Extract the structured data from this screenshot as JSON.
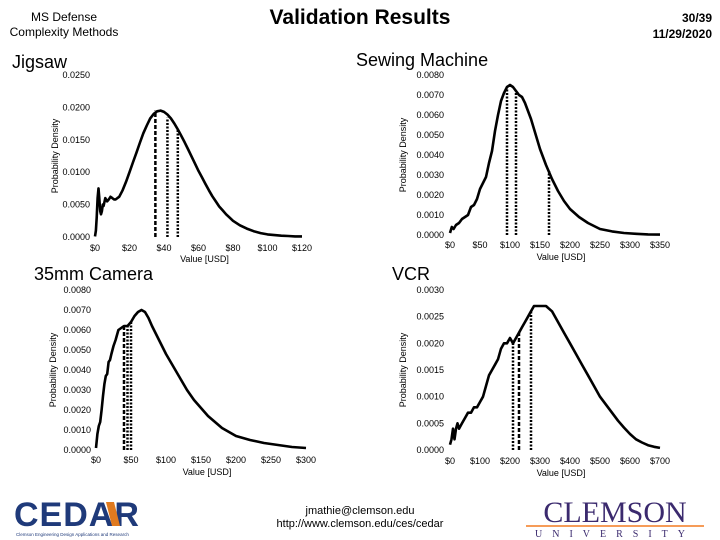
{
  "header": {
    "left_line1": "MS Defense",
    "left_line2": "Complexity Methods",
    "title": "Validation Results",
    "page": "30/39",
    "date": "11/29/2020"
  },
  "footer": {
    "email": "jmathie@clemson.edu",
    "url": "http://www.clemson.edu/ces/cedar",
    "cedar_logo_text": "CEDAR",
    "cedar_logo_subtext": "Clemson Engineering Design Applications and Research",
    "clemson_logo_text": "CLEMSON",
    "clemson_logo_subtext": "UNIVERSITY"
  },
  "chart_data": [
    {
      "type": "line",
      "title": "Jigsaw",
      "xlabel": "Value [USD]",
      "ylabel": "Probability Density",
      "xlim": [
        0,
        120
      ],
      "ylim": [
        0,
        0.025
      ],
      "xticks": [
        "$0",
        "$20",
        "$40",
        "$60",
        "$80",
        "$100",
        "$120"
      ],
      "yticks": [
        "0.0000",
        "0.0050",
        "0.0100",
        "0.0150",
        "0.0200",
        "0.0250"
      ],
      "series": [
        {
          "x": [
            0,
            0.5,
            1,
            1.5,
            2,
            2.5,
            3,
            3.5,
            4,
            4.5,
            5,
            6,
            7,
            8,
            9,
            10,
            11,
            12,
            13,
            14,
            16,
            18,
            20,
            22,
            24,
            26,
            28,
            30,
            32,
            34,
            36,
            38,
            40,
            42,
            44,
            46,
            48,
            50,
            52,
            54,
            56,
            58,
            60,
            62,
            64,
            66,
            68,
            70,
            72,
            74,
            76,
            78,
            80,
            84,
            88,
            92,
            96,
            100,
            104,
            108,
            112,
            116,
            120
          ],
          "y": [
            0.0001,
            0.001,
            0.003,
            0.006,
            0.0075,
            0.006,
            0.004,
            0.0035,
            0.004,
            0.005,
            0.0048,
            0.006,
            0.0055,
            0.0058,
            0.0062,
            0.006,
            0.0058,
            0.0058,
            0.006,
            0.0062,
            0.0072,
            0.0085,
            0.01,
            0.0115,
            0.013,
            0.0145,
            0.016,
            0.0172,
            0.0183,
            0.019,
            0.0194,
            0.0195,
            0.0193,
            0.0189,
            0.0183,
            0.0175,
            0.0166,
            0.0156,
            0.0146,
            0.0135,
            0.0124,
            0.0113,
            0.0102,
            0.0092,
            0.0082,
            0.0072,
            0.0063,
            0.0055,
            0.0047,
            0.0041,
            0.0035,
            0.003,
            0.0025,
            0.0018,
            0.0013,
            0.0009,
            0.0006,
            0.0004,
            0.0003,
            0.0002,
            0.00015,
            0.0001,
            0.0001
          ]
        }
      ],
      "vlines": [
        {
          "x": 35,
          "y": 0.0195,
          "style": "dashed"
        },
        {
          "x": 42,
          "y": 0.0184,
          "style": "dotted"
        },
        {
          "x": 48,
          "y": 0.0165,
          "style": "dotted"
        }
      ]
    },
    {
      "type": "line",
      "title": "Sewing Machine",
      "xlabel": "Value [USD]",
      "ylabel": "Probability Density",
      "xlim": [
        0,
        350
      ],
      "ylim": [
        0,
        0.008
      ],
      "xticks": [
        "$0",
        "$50",
        "$100",
        "$150",
        "$200",
        "$250",
        "$300",
        "$350"
      ],
      "yticks": [
        "0.0000",
        "0.0010",
        "0.0020",
        "0.0030",
        "0.0040",
        "0.0050",
        "0.0060",
        "0.0070",
        "0.0080"
      ],
      "series": [
        {
          "x": [
            0,
            3,
            6,
            10,
            15,
            20,
            25,
            30,
            35,
            40,
            45,
            50,
            55,
            60,
            65,
            70,
            75,
            80,
            85,
            90,
            95,
            100,
            105,
            110,
            115,
            120,
            125,
            130,
            135,
            140,
            145,
            150,
            160,
            170,
            180,
            190,
            200,
            215,
            230,
            250,
            270,
            290,
            310,
            330,
            350
          ],
          "y": [
            0.0001,
            0.0004,
            0.0003,
            0.0005,
            0.0006,
            0.0008,
            0.0009,
            0.001,
            0.0014,
            0.0015,
            0.0018,
            0.0023,
            0.0026,
            0.0029,
            0.0036,
            0.0042,
            0.0052,
            0.006,
            0.0067,
            0.0071,
            0.0074,
            0.0075,
            0.0074,
            0.0072,
            0.007,
            0.0069,
            0.0066,
            0.0062,
            0.0058,
            0.0053,
            0.0048,
            0.0043,
            0.0035,
            0.0028,
            0.0022,
            0.0017,
            0.0013,
            0.0009,
            0.0006,
            0.0003,
            0.00018,
            0.0001,
            6e-05,
            3e-05,
            2e-05
          ]
        }
      ],
      "vlines": [
        {
          "x": 95,
          "y": 0.0073,
          "style": "dotted"
        },
        {
          "x": 110,
          "y": 0.0072,
          "style": "dotted"
        },
        {
          "x": 165,
          "y": 0.0032,
          "style": "dotted"
        }
      ]
    },
    {
      "type": "line",
      "title": "35mm Camera",
      "xlabel": "Value [USD]",
      "ylabel": "Probability Density",
      "xlim": [
        0,
        300
      ],
      "ylim": [
        0,
        0.008
      ],
      "xticks": [
        "$0",
        "$50",
        "$100",
        "$150",
        "$200",
        "$250",
        "$300"
      ],
      "yticks": [
        "0.0000",
        "0.0010",
        "0.0020",
        "0.0030",
        "0.0040",
        "0.0050",
        "0.0060",
        "0.0070",
        "0.0080"
      ],
      "series": [
        {
          "x": [
            0,
            2,
            4,
            6,
            8,
            10,
            12,
            14,
            16,
            18,
            20,
            22,
            25,
            28,
            32,
            36,
            40,
            45,
            50,
            55,
            60,
            65,
            70,
            75,
            80,
            90,
            100,
            110,
            120,
            130,
            140,
            150,
            160,
            170,
            180,
            190,
            200,
            220,
            240,
            260,
            280,
            300
          ],
          "y": [
            0.0001,
            0.0008,
            0.0012,
            0.0014,
            0.002,
            0.0027,
            0.0033,
            0.0037,
            0.0038,
            0.0044,
            0.0045,
            0.0048,
            0.0052,
            0.0055,
            0.006,
            0.0061,
            0.0062,
            0.0062,
            0.0064,
            0.0067,
            0.0069,
            0.007,
            0.0069,
            0.0066,
            0.0062,
            0.0055,
            0.0048,
            0.0042,
            0.0036,
            0.003,
            0.0025,
            0.0021,
            0.0017,
            0.0014,
            0.0011,
            0.0009,
            0.0007,
            0.0005,
            0.00035,
            0.00025,
            0.00015,
            0.0001
          ]
        }
      ],
      "vlines": [
        {
          "x": 40,
          "y": 0.0062,
          "style": "dashed"
        },
        {
          "x": 45,
          "y": 0.0062,
          "style": "dotted"
        },
        {
          "x": 50,
          "y": 0.0064,
          "style": "dotted"
        }
      ]
    },
    {
      "type": "line",
      "title": "VCR",
      "xlabel": "Value [USD]",
      "ylabel": "Probability Density",
      "xlim": [
        0,
        700
      ],
      "ylim": [
        0,
        0.003
      ],
      "xticks": [
        "$0",
        "$100",
        "$200",
        "$300",
        "$400",
        "$500",
        "$600",
        "$700"
      ],
      "yticks": [
        "0.0000",
        "0.0005",
        "0.0010",
        "0.0015",
        "0.0020",
        "0.0025",
        "0.0030"
      ],
      "series": [
        {
          "x": [
            0,
            5,
            10,
            15,
            20,
            25,
            30,
            40,
            50,
            60,
            70,
            80,
            90,
            100,
            110,
            120,
            130,
            140,
            150,
            160,
            170,
            180,
            190,
            200,
            210,
            220,
            230,
            240,
            250,
            260,
            270,
            280,
            290,
            300,
            310,
            320,
            330,
            340,
            360,
            380,
            400,
            420,
            440,
            460,
            480,
            500,
            520,
            540,
            560,
            580,
            600,
            620,
            640,
            660,
            680,
            700
          ],
          "y": [
            0.0001,
            0.0002,
            0.0004,
            0.0002,
            0.0004,
            0.0005,
            0.0004,
            0.0005,
            0.0006,
            0.0007,
            0.0007,
            0.0008,
            0.0008,
            0.0009,
            0.001,
            0.0012,
            0.0014,
            0.0015,
            0.0016,
            0.0017,
            0.0019,
            0.002,
            0.002,
            0.0021,
            0.002,
            0.0021,
            0.0022,
            0.0023,
            0.0024,
            0.0025,
            0.0026,
            0.0027,
            0.0027,
            0.0027,
            0.0027,
            0.0027,
            0.00265,
            0.0026,
            0.0024,
            0.0022,
            0.002,
            0.0018,
            0.0016,
            0.0014,
            0.0012,
            0.001,
            0.00085,
            0.0007,
            0.00055,
            0.00042,
            0.0003,
            0.0002,
            0.00014,
            9e-05,
            6e-05,
            4e-05
          ]
        }
      ],
      "vlines": [
        {
          "x": 210,
          "y": 0.002,
          "style": "dotted"
        },
        {
          "x": 230,
          "y": 0.0022,
          "style": "dashed"
        },
        {
          "x": 270,
          "y": 0.0026,
          "style": "dotted"
        }
      ]
    }
  ]
}
